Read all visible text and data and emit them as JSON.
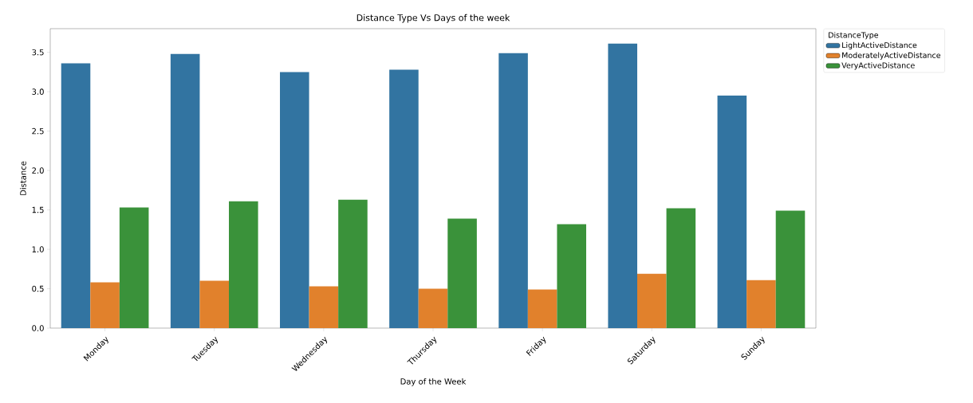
{
  "chart_data": {
    "type": "bar",
    "title": "Distance Type Vs Days of the week",
    "xlabel": "Day of the Week",
    "ylabel": "Distance",
    "legend_title": "DistanceType",
    "categories": [
      "Monday",
      "Tuesday",
      "Wednesday",
      "Thursday",
      "Friday",
      "Saturday",
      "Sunday"
    ],
    "series": [
      {
        "name": "LightActiveDistance",
        "color": "#3274a1",
        "values": [
          3.36,
          3.48,
          3.25,
          3.28,
          3.49,
          3.61,
          2.95
        ]
      },
      {
        "name": "ModeratelyActiveDistance",
        "color": "#e1812c",
        "values": [
          0.58,
          0.6,
          0.53,
          0.5,
          0.49,
          0.69,
          0.61
        ]
      },
      {
        "name": "VeryActiveDistance",
        "color": "#3a923a",
        "values": [
          1.53,
          1.61,
          1.63,
          1.39,
          1.32,
          1.52,
          1.49
        ]
      }
    ],
    "ylim": [
      0,
      3.8
    ],
    "yticks": [
      {
        "value": 0,
        "label": "0.0"
      },
      0.5,
      {
        "value": 1,
        "label": "1.0"
      },
      1.5,
      {
        "value": 2,
        "label": "2.0"
      },
      2.5,
      {
        "value": 3,
        "label": "3.0"
      },
      3.5
    ],
    "legend": "right",
    "grid": false
  }
}
